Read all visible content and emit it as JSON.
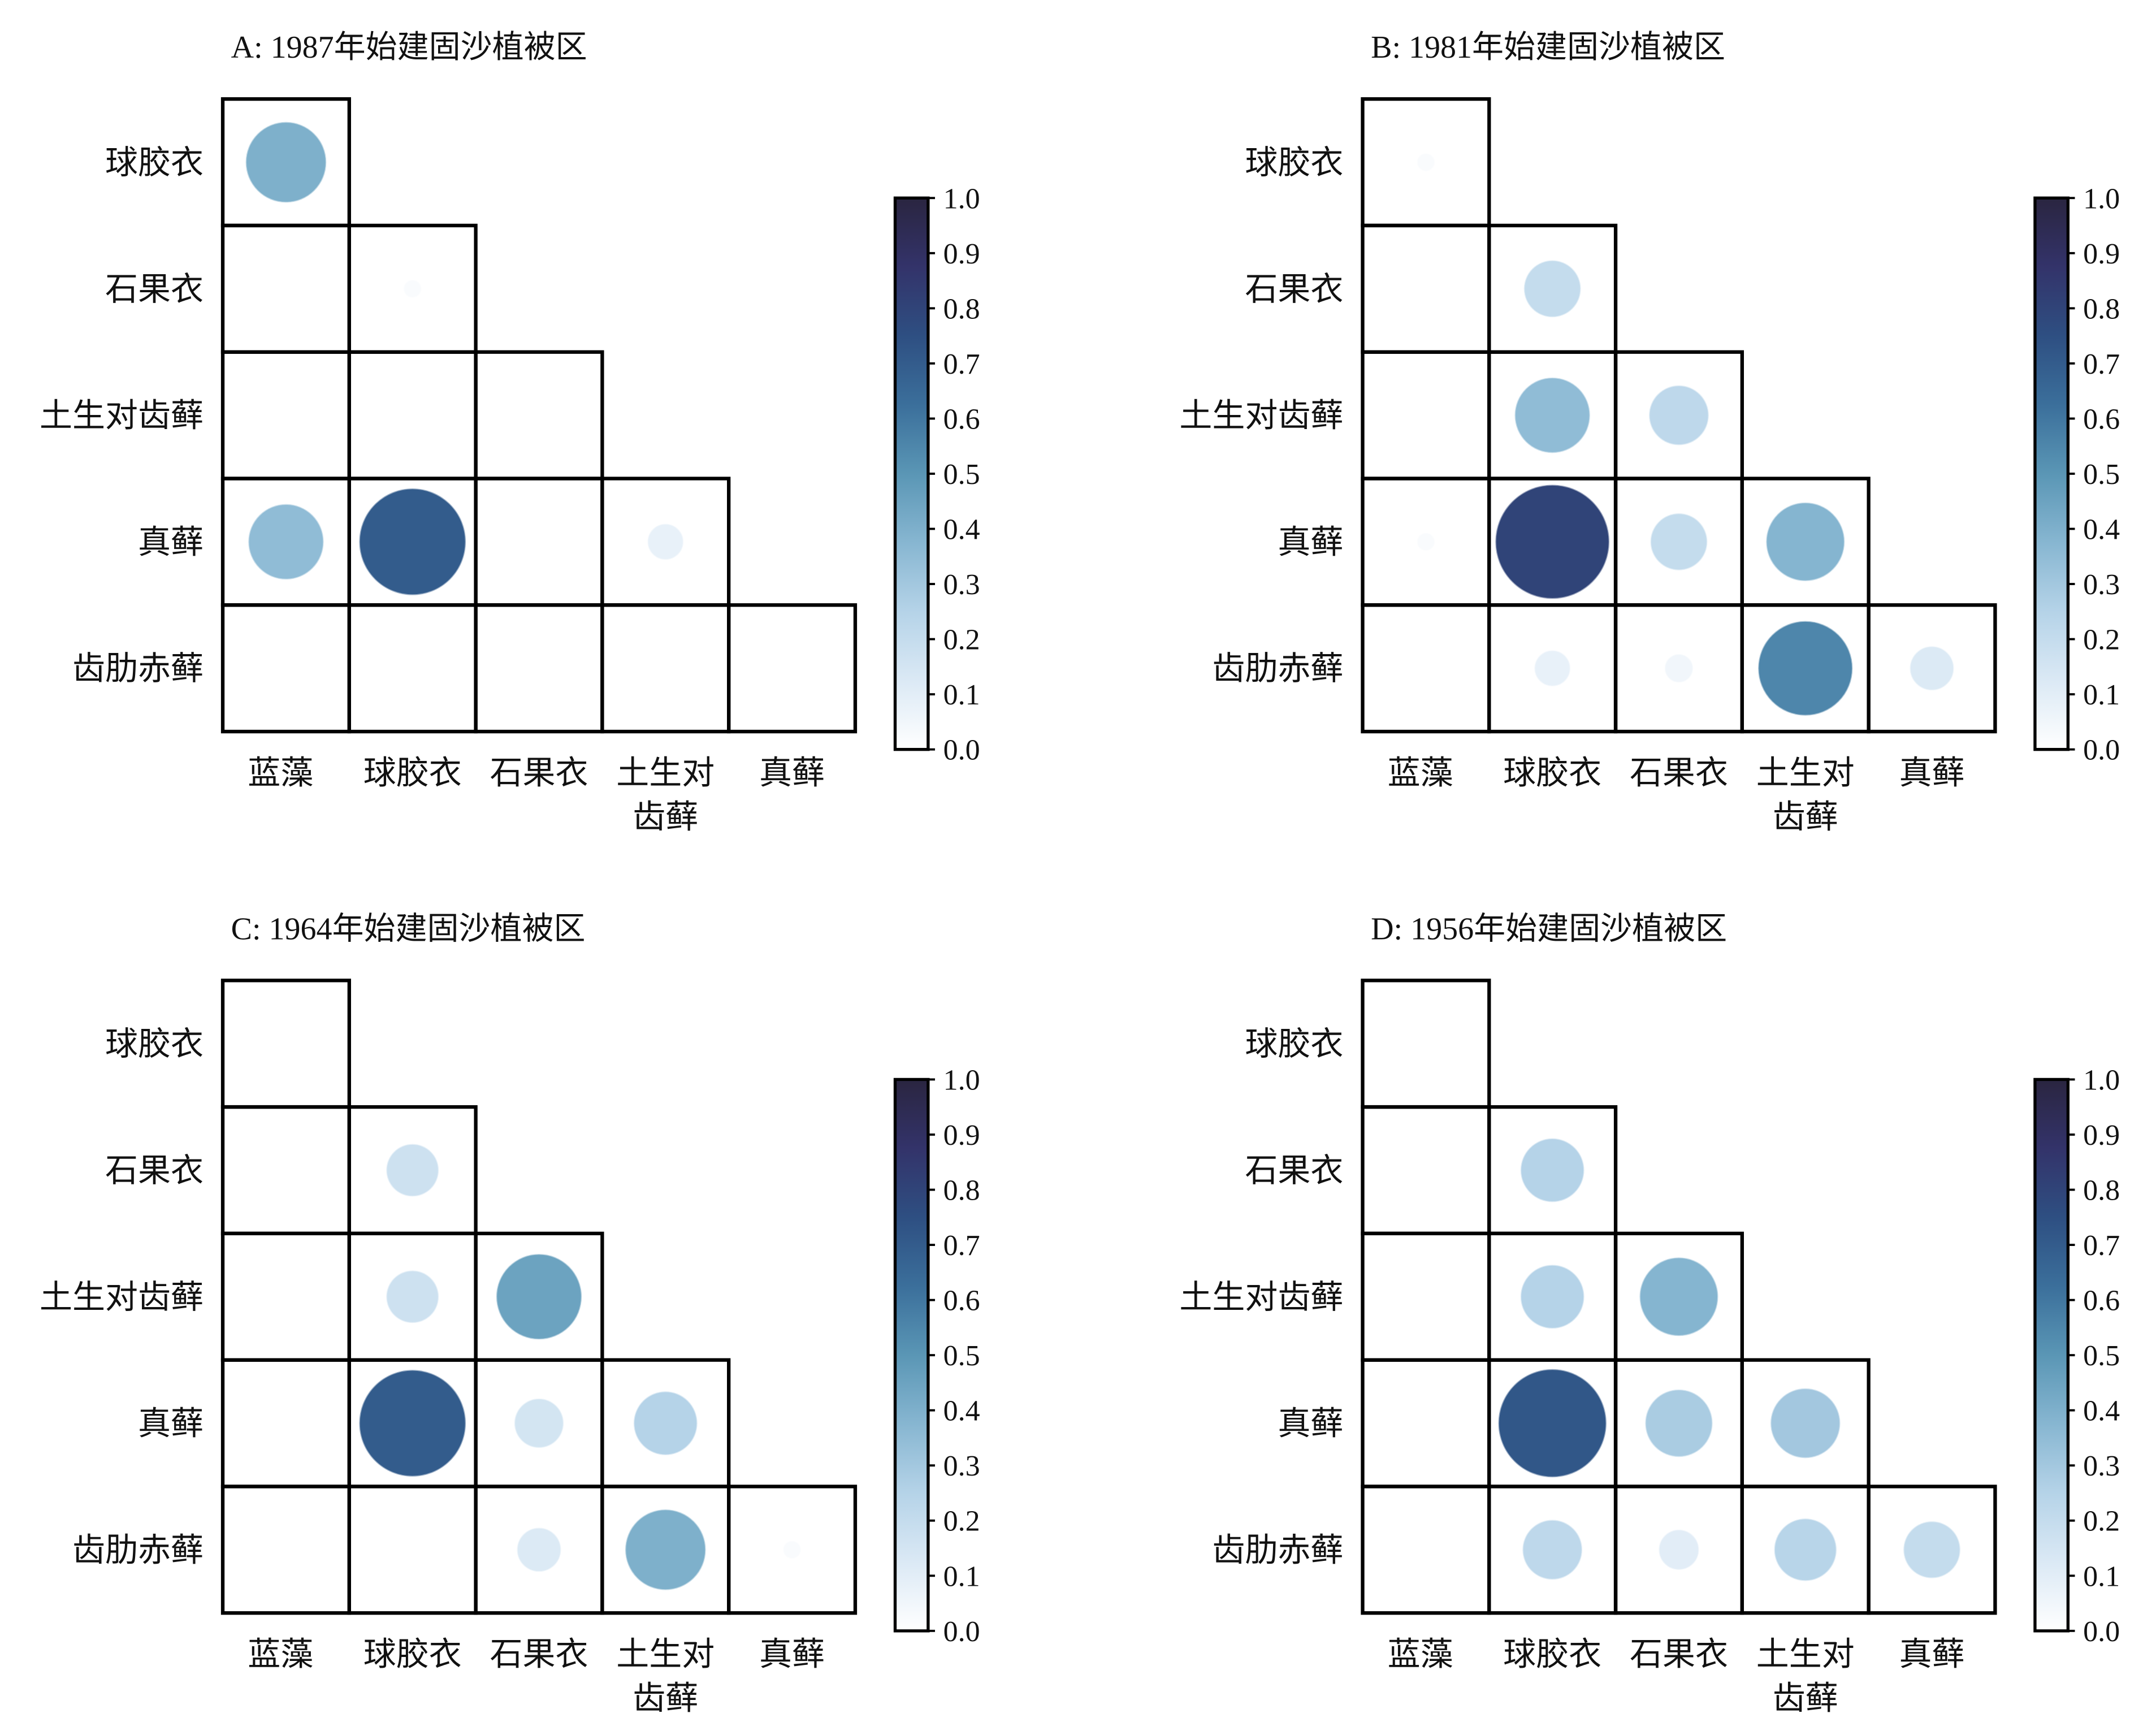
{
  "chart_data": [
    {
      "type": "heatmap",
      "title": "A: 1987年始建固沙植被区",
      "rows": [
        "球胶衣",
        "石果衣",
        "土生对齿藓",
        "真藓",
        "齿肋赤藓"
      ],
      "cols": [
        "蓝藻",
        "球胶衣",
        "石果衣",
        "土生对齿藓",
        "真藓"
      ],
      "col_label_lines": [
        [
          "蓝藻"
        ],
        [
          "球胶衣"
        ],
        [
          "石果衣"
        ],
        [
          "土生对",
          "齿藓"
        ],
        [
          "真藓"
        ]
      ],
      "values": [
        [
          0.4,
          null,
          null,
          null,
          null
        ],
        [
          0.0,
          0.02,
          null,
          null,
          null
        ],
        [
          0.0,
          0.0,
          0.0,
          null,
          null
        ],
        [
          0.35,
          0.7,
          0.0,
          0.08,
          null
        ],
        [
          0.0,
          0.0,
          0.0,
          0.0,
          0.0
        ]
      ],
      "colorbar": {
        "min": 0.0,
        "max": 1.0,
        "ticks": [
          "0.0",
          "0.1",
          "0.2",
          "0.3",
          "0.4",
          "0.5",
          "0.6",
          "0.7",
          "0.8",
          "0.9",
          "1.0"
        ]
      }
    },
    {
      "type": "heatmap",
      "title": "B: 1981年始建固沙植被区",
      "rows": [
        "球胶衣",
        "石果衣",
        "土生对齿藓",
        "真藓",
        "齿肋赤藓"
      ],
      "cols": [
        "蓝藻",
        "球胶衣",
        "石果衣",
        "土生对齿藓",
        "真藓"
      ],
      "col_label_lines": [
        [
          "蓝藻"
        ],
        [
          "球胶衣"
        ],
        [
          "石果衣"
        ],
        [
          "土生对",
          "齿藓"
        ],
        [
          "真藓"
        ]
      ],
      "values": [
        [
          0.02,
          null,
          null,
          null,
          null
        ],
        [
          0.0,
          0.2,
          null,
          null,
          null
        ],
        [
          0.0,
          0.35,
          0.22,
          null,
          null
        ],
        [
          0.02,
          0.8,
          0.2,
          0.38,
          null
        ],
        [
          0.0,
          0.08,
          0.05,
          0.55,
          0.12
        ]
      ],
      "colorbar": {
        "min": 0.0,
        "max": 1.0,
        "ticks": [
          "0.0",
          "0.1",
          "0.2",
          "0.3",
          "0.4",
          "0.5",
          "0.6",
          "0.7",
          "0.8",
          "0.9",
          "1.0"
        ]
      }
    },
    {
      "type": "heatmap",
      "title": "C: 1964年始建固沙植被区",
      "rows": [
        "球胶衣",
        "石果衣",
        "土生对齿藓",
        "真藓",
        "齿肋赤藓"
      ],
      "cols": [
        "蓝藻",
        "球胶衣",
        "石果衣",
        "土生对齿藓",
        "真藓"
      ],
      "col_label_lines": [
        [
          "蓝藻"
        ],
        [
          "球胶衣"
        ],
        [
          "石果衣"
        ],
        [
          "土生对",
          "齿藓"
        ],
        [
          "真藓"
        ]
      ],
      "values": [
        [
          0.0,
          null,
          null,
          null,
          null
        ],
        [
          0.0,
          0.17,
          null,
          null,
          null
        ],
        [
          0.0,
          0.17,
          0.45,
          null,
          null
        ],
        [
          0.0,
          0.7,
          0.15,
          0.25,
          null
        ],
        [
          0.0,
          0.0,
          0.12,
          0.4,
          0.02
        ]
      ],
      "colorbar": {
        "min": 0.0,
        "max": 1.0,
        "ticks": [
          "0.0",
          "0.1",
          "0.2",
          "0.3",
          "0.4",
          "0.5",
          "0.6",
          "0.7",
          "0.8",
          "0.9",
          "1.0"
        ]
      }
    },
    {
      "type": "heatmap",
      "title": "D: 1956年始建固沙植被区",
      "rows": [
        "球胶衣",
        "石果衣",
        "土生对齿藓",
        "真藓",
        "齿肋赤藓"
      ],
      "cols": [
        "蓝藻",
        "球胶衣",
        "石果衣",
        "土生对齿藓",
        "真藓"
      ],
      "col_label_lines": [
        [
          "蓝藻"
        ],
        [
          "球胶衣"
        ],
        [
          "石果衣"
        ],
        [
          "土生对",
          "齿藓"
        ],
        [
          "真藓"
        ]
      ],
      "values": [
        [
          0.0,
          null,
          null,
          null,
          null
        ],
        [
          0.0,
          0.25,
          null,
          null,
          null
        ],
        [
          0.0,
          0.25,
          0.38,
          null,
          null
        ],
        [
          0.0,
          0.72,
          0.28,
          0.3,
          null
        ],
        [
          0.0,
          0.22,
          0.1,
          0.24,
          0.2
        ]
      ],
      "colorbar": {
        "min": 0.0,
        "max": 1.0,
        "ticks": [
          "0.0",
          "0.1",
          "0.2",
          "0.3",
          "0.4",
          "0.5",
          "0.6",
          "0.7",
          "0.8",
          "0.9",
          "1.0"
        ]
      }
    }
  ],
  "colors": {
    "scale": [
      "#ffffff",
      "#dbe9f5",
      "#b5d3e8",
      "#87b6d1",
      "#5a96b5",
      "#3b6f9b",
      "#2e4f82",
      "#33336a",
      "#2a2540"
    ],
    "grid_line": "#000000",
    "text": "#111111"
  }
}
